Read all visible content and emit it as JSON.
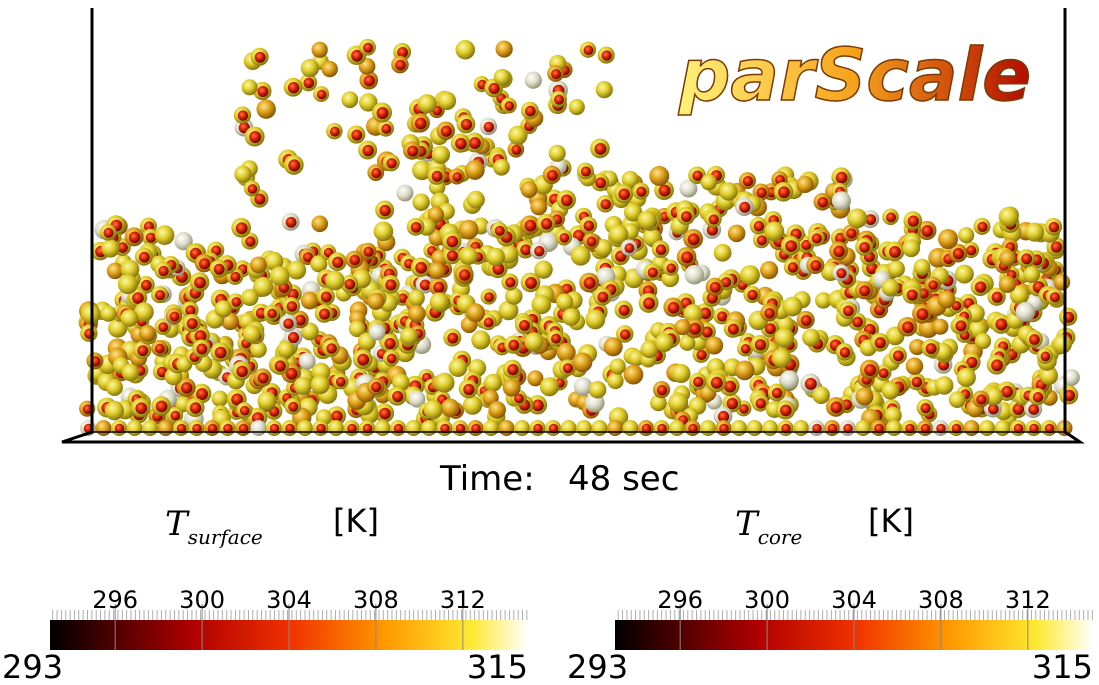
{
  "logo": "parScale",
  "time_label": "Time:",
  "time_value": "48 sec",
  "colorbars": [
    {
      "symbol": "T",
      "subscript": "surface",
      "unit": "[K]",
      "min": 293,
      "max": 315,
      "ticks": [
        296,
        300,
        304,
        308,
        312
      ]
    },
    {
      "symbol": "T",
      "subscript": "core",
      "unit": "[K]",
      "min": 293,
      "max": 315,
      "ticks": [
        296,
        300,
        304,
        308,
        312
      ]
    }
  ]
}
